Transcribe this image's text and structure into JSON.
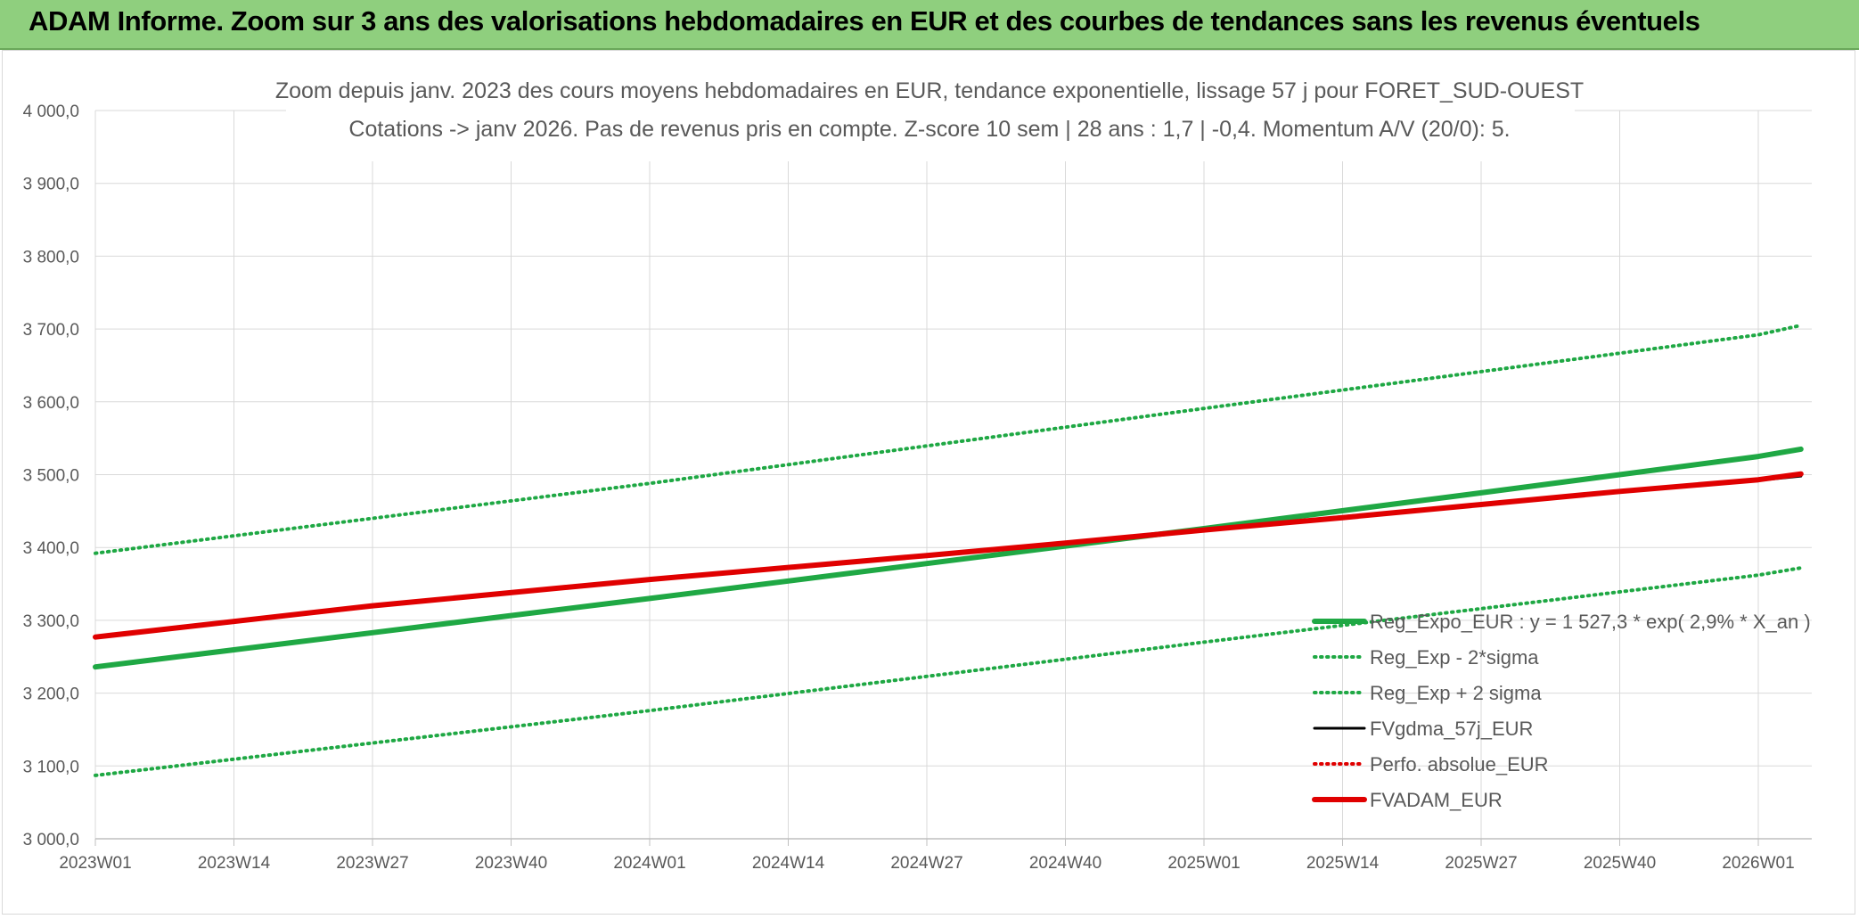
{
  "header": {
    "title": "ADAM Informe. Zoom sur 3 ans des valorisations hebdomadaires en EUR et des courbes de tendances sans les revenus éventuels"
  },
  "chart_data": {
    "type": "line",
    "title": "Zoom depuis janv. 2023 des cours moyens hebdomadaires en EUR, tendance exponentielle, lissage 57 j pour FORET_SUD-OUEST",
    "subtitle": "Cotations -> janv 2026. Pas de revenus pris en compte. Z-score 10 sem | 28 ans : 1,7 | -0,4. Momentum A/V (20/0): 5.",
    "xlabel": "",
    "ylabel": "",
    "ylim": [
      3000,
      4000
    ],
    "x_ticks": [
      "2023W01",
      "2023W14",
      "2023W27",
      "2023W40",
      "2024W01",
      "2024W14",
      "2024W27",
      "2024W40",
      "2025W01",
      "2025W14",
      "2025W27",
      "2025W40",
      "2026W01"
    ],
    "y_ticks": [
      "3 000,0",
      "3 100,0",
      "3 200,0",
      "3 300,0",
      "3 400,0",
      "3 500,0",
      "3 600,0",
      "3 700,0",
      "3 800,0",
      "3 900,0",
      "4 000,0"
    ],
    "grid": true,
    "legend_position": "bottom-right",
    "series": [
      {
        "name": "Reg_Expo_EUR : y = 1 527,3 * exp( 2,9% *  X_an )",
        "color": "#1fa844",
        "style": "solid-thick",
        "x": [
          "2023W01",
          "2023W27",
          "2024W01",
          "2024W27",
          "2024W40",
          "2025W01",
          "2025W27",
          "2026W01",
          "2026W05"
        ],
        "values": [
          3236,
          3283,
          3330,
          3378,
          3402,
          3426,
          3475,
          3525,
          3535
        ]
      },
      {
        "name": "Reg_Exp - 2*sigma",
        "color": "#1fa844",
        "style": "dotted",
        "x": [
          "2023W01",
          "2024W01",
          "2025W01",
          "2026W01",
          "2026W05"
        ],
        "values": [
          3087,
          3176,
          3270,
          3362,
          3372
        ]
      },
      {
        "name": "Reg_Exp + 2 sigma",
        "color": "#1fa844",
        "style": "dotted",
        "x": [
          "2023W01",
          "2024W01",
          "2025W01",
          "2026W01",
          "2026W05"
        ],
        "values": [
          3392,
          3488,
          3591,
          3692,
          3705
        ]
      },
      {
        "name": "FVgdma_57j_EUR",
        "color": "#000000",
        "style": "solid",
        "x": [
          "2025W01",
          "2025W27",
          "2026W01",
          "2026W05"
        ],
        "values": [
          3425,
          3460,
          3492,
          3498
        ]
      },
      {
        "name": "Perfo. absolue_EUR",
        "color": "#e00000",
        "style": "dotted",
        "x": [],
        "values": []
      },
      {
        "name": "FVADAM_EUR",
        "color": "#e00000",
        "style": "solid-thick",
        "x": [
          "2023W01",
          "2023W27",
          "2024W01",
          "2024W27",
          "2024W40",
          "2025W01",
          "2025W14",
          "2025W27",
          "2025W40",
          "2026W01",
          "2026W05"
        ],
        "values": [
          3277,
          3320,
          3356,
          3389,
          3406,
          3424,
          3441,
          3459,
          3477,
          3493,
          3501
        ]
      }
    ]
  }
}
